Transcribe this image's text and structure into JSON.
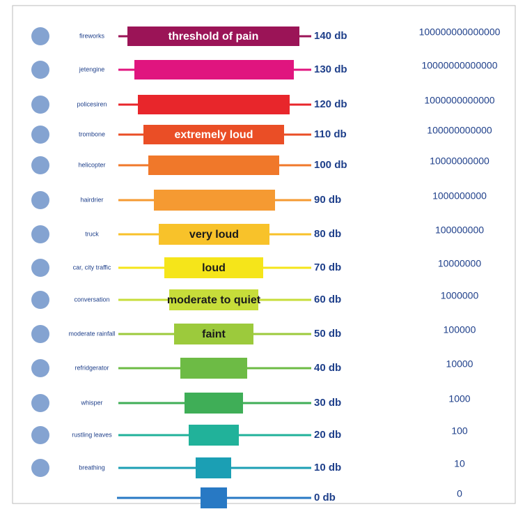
{
  "rows": [
    {
      "source": "fireworks",
      "bar_label": "threshold of pain",
      "level": "140 db",
      "intensity": "100000000000000",
      "color": "#9b1457"
    },
    {
      "source": "jetengine",
      "level": "130 db",
      "intensity": "10000000000000",
      "color": "#e0157f"
    },
    {
      "source": "policesiren",
      "level": "120 db",
      "intensity": "1000000000000",
      "color": "#e8262b"
    },
    {
      "source": "trombone",
      "bar_label": "extremely loud",
      "level": "110 db",
      "intensity": "100000000000",
      "color": "#ea4e26"
    },
    {
      "source": "helicopter",
      "level": "100 db",
      "intensity": "10000000000",
      "color": "#f0782a"
    },
    {
      "source": "hairdrier",
      "level": "90 db",
      "intensity": "1000000000",
      "color": "#f59a32"
    },
    {
      "source": "truck",
      "bar_label": "very loud",
      "level": "80 db",
      "intensity": "100000000",
      "color": "#f8c22a"
    },
    {
      "source": "car, city traffic",
      "bar_label": "loud",
      "level": "70 db",
      "intensity": "10000000",
      "color": "#f5e51a"
    },
    {
      "source": "conversation",
      "bar_label": "moderate to quiet",
      "level": "60 db",
      "intensity": "1000000",
      "color": "#c7dd3a"
    },
    {
      "source": "moderate rainfall",
      "bar_label": "faint",
      "level": "50 db",
      "intensity": "100000",
      "color": "#9cca3c"
    },
    {
      "source": "refridgerator",
      "level": "40 db",
      "intensity": "10000",
      "color": "#6dbb45"
    },
    {
      "source": "whisper",
      "level": "30 db",
      "intensity": "1000",
      "color": "#3fae57"
    },
    {
      "source": "rustling leaves",
      "level": "20 db",
      "intensity": "100",
      "color": "#21b29a"
    },
    {
      "source": "breathing",
      "level": "10 db",
      "intensity": "10",
      "color": "#1b9fb4"
    },
    {
      "level": "0 db",
      "intensity": "0",
      "color": "#2879c4"
    }
  ]
}
